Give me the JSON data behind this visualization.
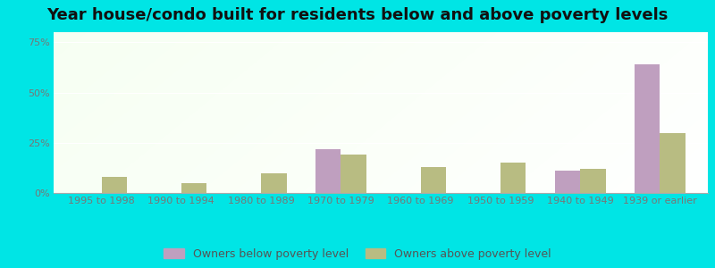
{
  "title": "Year house/condo built for residents below and above poverty levels",
  "categories": [
    "1995 to 1998",
    "1990 to 1994",
    "1980 to 1989",
    "1970 to 1979",
    "1960 to 1969",
    "1950 to 1959",
    "1940 to 1949",
    "1939 or earlier"
  ],
  "below_poverty": [
    0,
    0,
    0,
    22,
    0,
    0,
    11,
    64
  ],
  "above_poverty": [
    8,
    5,
    10,
    19,
    13,
    15,
    12,
    30
  ],
  "below_color": "#bf9fbf",
  "above_color": "#b8bc82",
  "background_outer": "#00e5e5",
  "ylim": [
    0,
    80
  ],
  "yticks": [
    0,
    25,
    50,
    75
  ],
  "ytick_labels": [
    "0%",
    "25%",
    "50%",
    "75%"
  ],
  "legend_below": "Owners below poverty level",
  "legend_above": "Owners above poverty level",
  "title_fontsize": 13,
  "tick_fontsize": 8,
  "legend_fontsize": 9,
  "grid_color": "#ffffff",
  "bar_width": 0.32
}
